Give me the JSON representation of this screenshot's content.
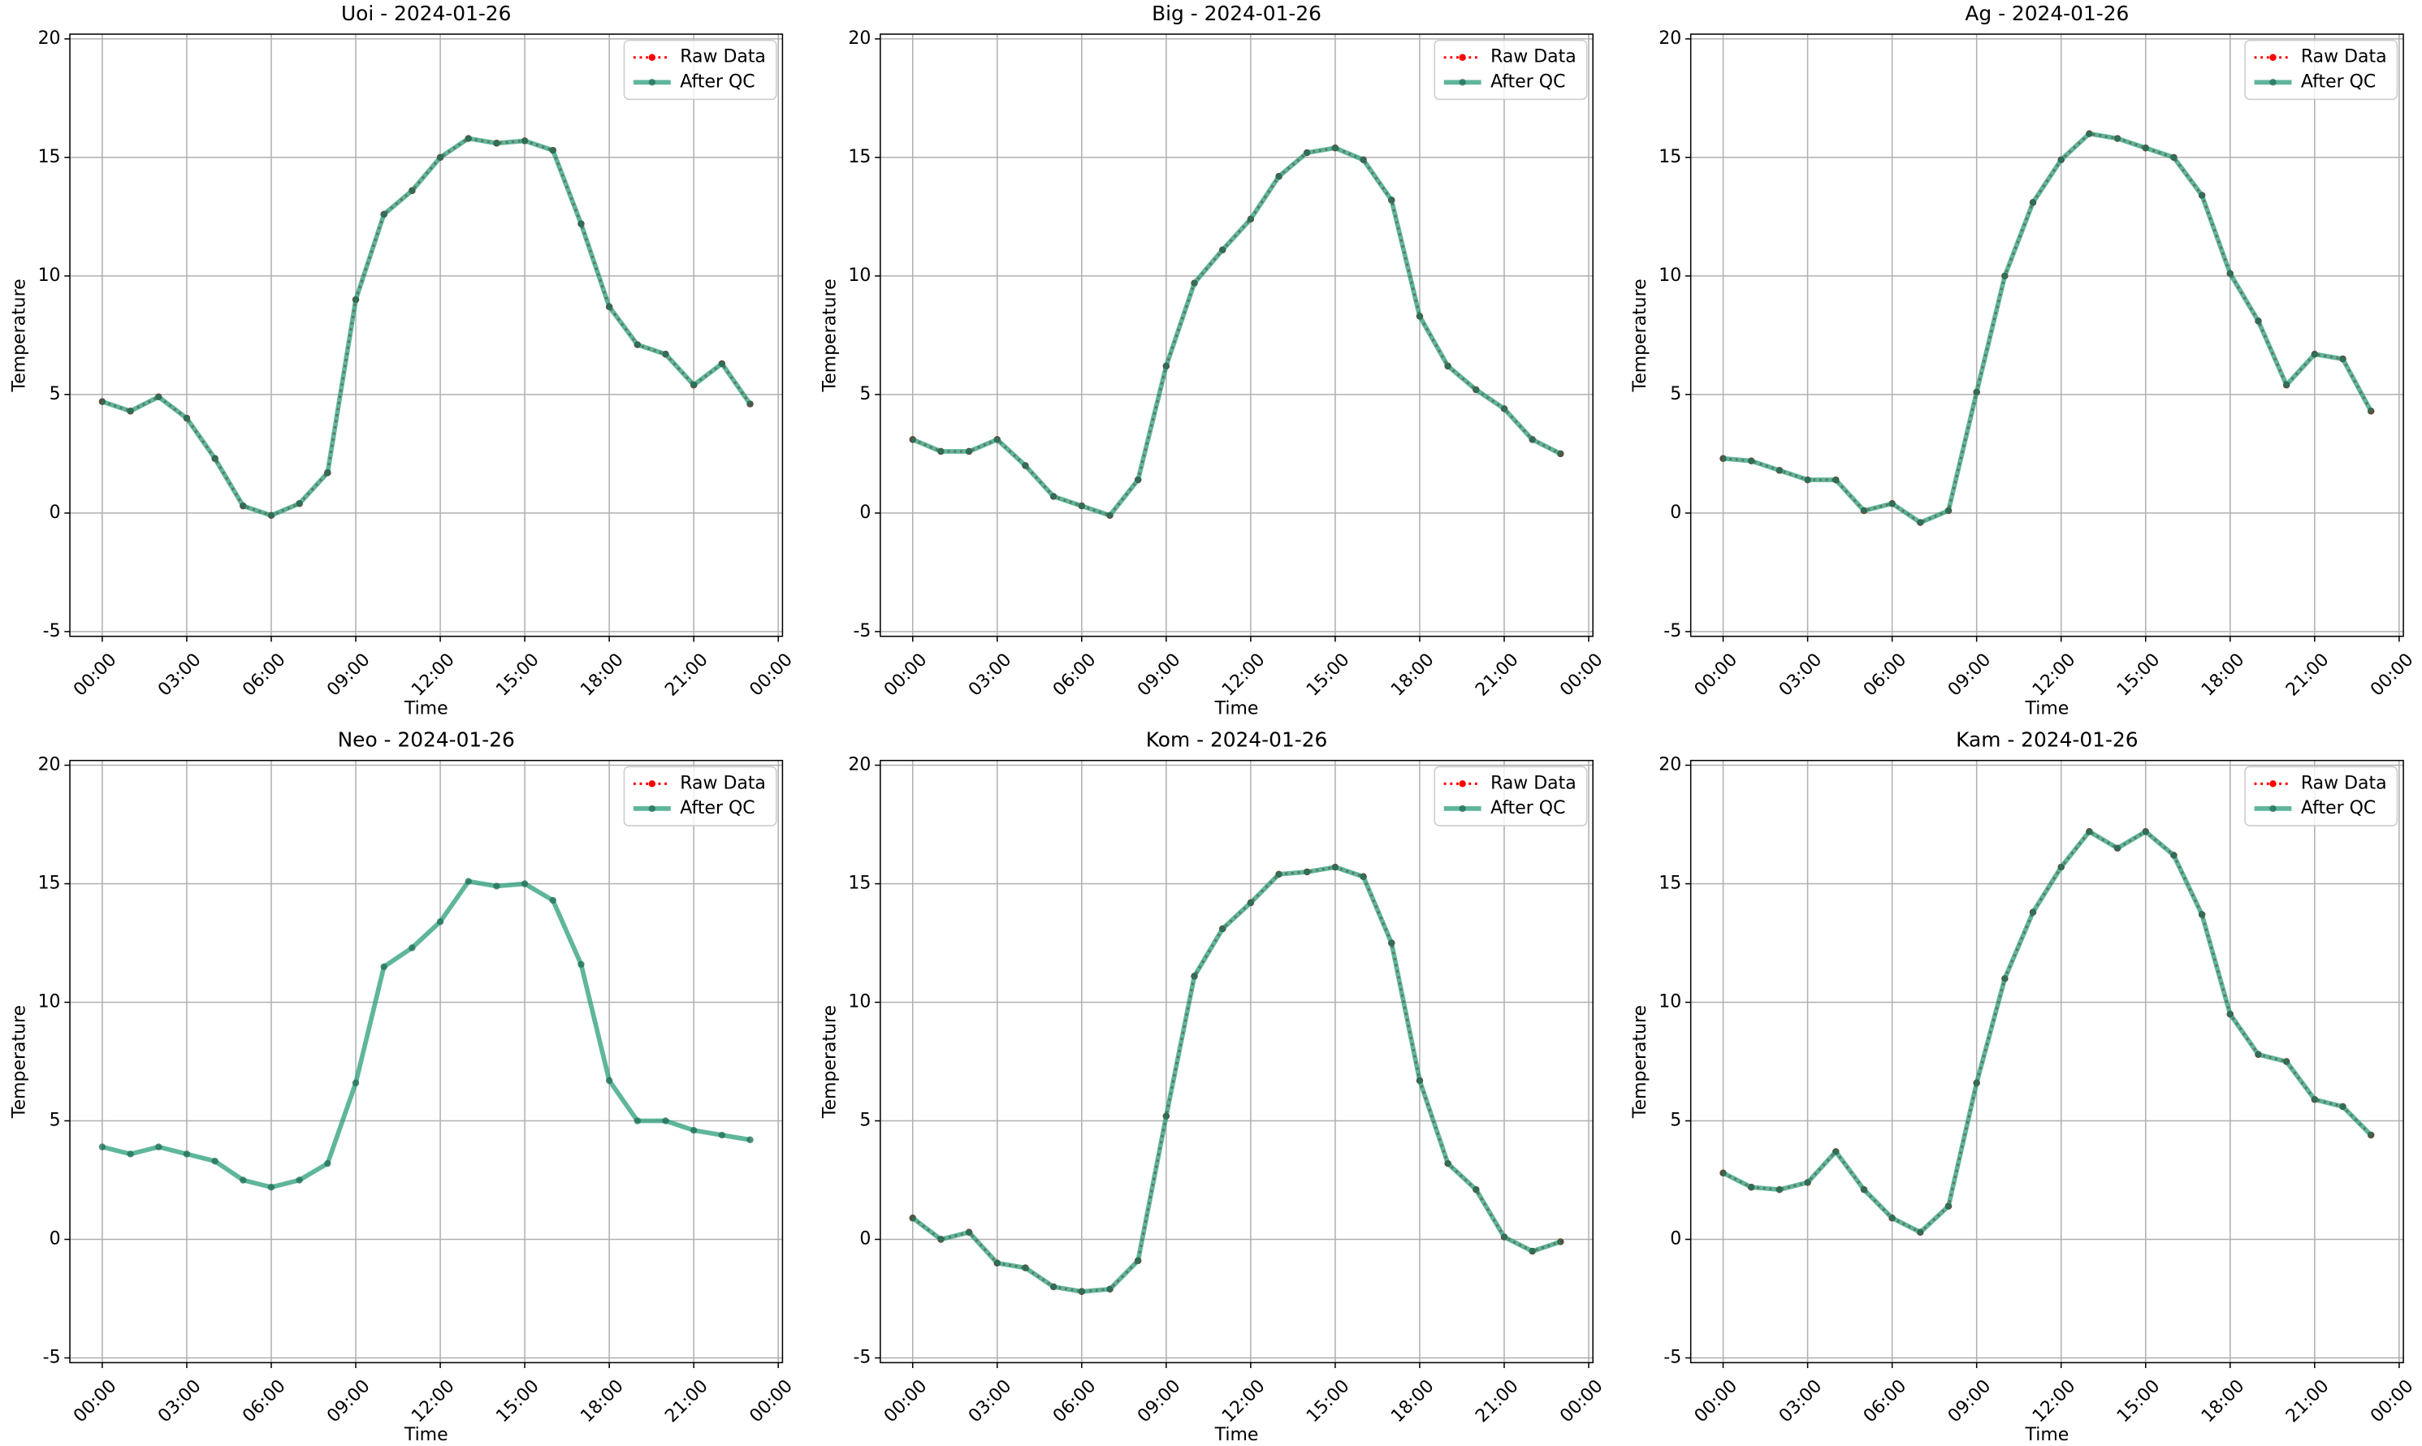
{
  "chart_data": [
    {
      "type": "line",
      "title": "Uoi - 2024-01-26",
      "xlabel": "Time",
      "ylabel": "Temperature",
      "x": [
        0,
        1,
        2,
        3,
        4,
        5,
        6,
        7,
        8,
        9,
        10,
        11,
        12,
        13,
        14,
        15,
        16,
        17,
        18,
        19,
        20,
        21,
        22,
        23
      ],
      "xlim": [
        -1.15,
        24.15
      ],
      "xticks": [
        {
          "value": 0,
          "label": "00:00"
        },
        {
          "value": 3,
          "label": "03:00"
        },
        {
          "value": 6,
          "label": "06:00"
        },
        {
          "value": 9,
          "label": "09:00"
        },
        {
          "value": 12,
          "label": "12:00"
        },
        {
          "value": 15,
          "label": "15:00"
        },
        {
          "value": 18,
          "label": "18:00"
        },
        {
          "value": 21,
          "label": "21:00"
        },
        {
          "value": 24,
          "label": "00:00"
        }
      ],
      "ylim": [
        -5.2,
        20.2
      ],
      "yticks": [
        -5,
        0,
        5,
        10,
        15,
        20
      ],
      "grid": true,
      "legend": "upper right",
      "series": [
        {
          "name": "Raw Data",
          "color": "red",
          "values": [
            4.7,
            4.3,
            4.9,
            4.0,
            2.3,
            0.3,
            -0.1,
            0.4,
            1.7,
            9.0,
            12.6,
            13.6,
            15.0,
            15.8,
            15.6,
            15.7,
            15.3,
            12.2,
            8.7,
            7.1,
            6.7,
            5.4,
            6.3,
            4.6
          ]
        },
        {
          "name": "After QC",
          "color": "#2a9d7a",
          "values": [
            4.7,
            4.3,
            4.9,
            4.0,
            2.3,
            0.3,
            -0.1,
            0.4,
            1.7,
            9.0,
            12.6,
            13.6,
            15.0,
            15.8,
            15.6,
            15.7,
            15.3,
            12.2,
            8.7,
            7.1,
            6.7,
            5.4,
            6.3,
            4.6
          ]
        }
      ]
    },
    {
      "type": "line",
      "title": "Big - 2024-01-26",
      "xlabel": "Time",
      "ylabel": "Temperature",
      "x": [
        0,
        1,
        2,
        3,
        4,
        5,
        6,
        7,
        8,
        9,
        10,
        11,
        12,
        13,
        14,
        15,
        16,
        17,
        18,
        19,
        20,
        21,
        22,
        23
      ],
      "xlim": [
        -1.15,
        24.15
      ],
      "xticks": [
        {
          "value": 0,
          "label": "00:00"
        },
        {
          "value": 3,
          "label": "03:00"
        },
        {
          "value": 6,
          "label": "06:00"
        },
        {
          "value": 9,
          "label": "09:00"
        },
        {
          "value": 12,
          "label": "12:00"
        },
        {
          "value": 15,
          "label": "15:00"
        },
        {
          "value": 18,
          "label": "18:00"
        },
        {
          "value": 21,
          "label": "21:00"
        },
        {
          "value": 24,
          "label": "00:00"
        }
      ],
      "ylim": [
        -5.2,
        20.2
      ],
      "yticks": [
        -5,
        0,
        5,
        10,
        15,
        20
      ],
      "grid": true,
      "legend": "upper right",
      "series": [
        {
          "name": "Raw Data",
          "color": "red",
          "values": [
            3.1,
            2.6,
            2.6,
            3.1,
            2.0,
            0.7,
            0.3,
            -0.1,
            1.4,
            6.2,
            9.7,
            11.1,
            12.4,
            14.2,
            15.2,
            15.4,
            14.9,
            13.2,
            8.3,
            6.2,
            5.2,
            4.4,
            3.1,
            2.5
          ]
        },
        {
          "name": "After QC",
          "color": "#2a9d7a",
          "values": [
            3.1,
            2.6,
            2.6,
            3.1,
            2.0,
            0.7,
            0.3,
            -0.1,
            1.4,
            6.2,
            9.7,
            11.1,
            12.4,
            14.2,
            15.2,
            15.4,
            14.9,
            13.2,
            8.3,
            6.2,
            5.2,
            4.4,
            3.1,
            2.5
          ]
        }
      ]
    },
    {
      "type": "line",
      "title": "Ag - 2024-01-26",
      "xlabel": "Time",
      "ylabel": "Temperature",
      "x": [
        0,
        1,
        2,
        3,
        4,
        5,
        6,
        7,
        8,
        9,
        10,
        11,
        12,
        13,
        14,
        15,
        16,
        17,
        18,
        19,
        20,
        21,
        22,
        23
      ],
      "xlim": [
        -1.15,
        24.15
      ],
      "xticks": [
        {
          "value": 0,
          "label": "00:00"
        },
        {
          "value": 3,
          "label": "03:00"
        },
        {
          "value": 6,
          "label": "06:00"
        },
        {
          "value": 9,
          "label": "09:00"
        },
        {
          "value": 12,
          "label": "12:00"
        },
        {
          "value": 15,
          "label": "15:00"
        },
        {
          "value": 18,
          "label": "18:00"
        },
        {
          "value": 21,
          "label": "21:00"
        },
        {
          "value": 24,
          "label": "00:00"
        }
      ],
      "ylim": [
        -5.2,
        20.2
      ],
      "yticks": [
        -5,
        0,
        5,
        10,
        15,
        20
      ],
      "grid": true,
      "legend": "upper right",
      "series": [
        {
          "name": "Raw Data",
          "color": "red",
          "values": [
            2.3,
            2.2,
            1.8,
            1.4,
            1.4,
            0.1,
            0.4,
            -0.4,
            0.1,
            5.1,
            10.0,
            13.1,
            14.9,
            16.0,
            15.8,
            15.4,
            15.0,
            13.4,
            10.1,
            8.1,
            5.4,
            6.7,
            6.5,
            4.3
          ]
        },
        {
          "name": "After QC",
          "color": "#2a9d7a",
          "values": [
            2.3,
            2.2,
            1.8,
            1.4,
            1.4,
            0.1,
            0.4,
            -0.4,
            0.1,
            5.1,
            10.0,
            13.1,
            14.9,
            16.0,
            15.8,
            15.4,
            15.0,
            13.4,
            10.1,
            8.1,
            5.4,
            6.7,
            6.5,
            4.3
          ]
        }
      ]
    },
    {
      "type": "line",
      "title": "Neo - 2024-01-26",
      "xlabel": "Time",
      "ylabel": "Temperature",
      "x": [
        0,
        1,
        2,
        3,
        4,
        5,
        6,
        7,
        8,
        9,
        10,
        11,
        12,
        13,
        14,
        15,
        16,
        17,
        18,
        19,
        20,
        21,
        22,
        23
      ],
      "xlim": [
        -1.15,
        24.15
      ],
      "xticks": [
        {
          "value": 0,
          "label": "00:00"
        },
        {
          "value": 3,
          "label": "03:00"
        },
        {
          "value": 6,
          "label": "06:00"
        },
        {
          "value": 9,
          "label": "09:00"
        },
        {
          "value": 12,
          "label": "12:00"
        },
        {
          "value": 15,
          "label": "15:00"
        },
        {
          "value": 18,
          "label": "18:00"
        },
        {
          "value": 21,
          "label": "21:00"
        },
        {
          "value": 24,
          "label": "00:00"
        }
      ],
      "ylim": [
        -5.2,
        20.2
      ],
      "yticks": [
        -5,
        0,
        5,
        10,
        15,
        20
      ],
      "grid": true,
      "legend": "upper right",
      "series": [
        {
          "name": "Raw Data",
          "color": "red",
          "values": [
            null,
            null,
            null,
            null,
            null,
            null,
            null,
            null,
            null,
            null,
            null,
            null,
            null,
            null,
            null,
            null,
            null,
            null,
            null,
            null,
            null,
            null,
            null,
            null
          ]
        },
        {
          "name": "After QC",
          "color": "#2a9d7a",
          "values": [
            3.9,
            3.6,
            3.9,
            3.6,
            3.3,
            2.5,
            2.2,
            2.5,
            3.2,
            6.6,
            11.5,
            12.3,
            13.4,
            15.1,
            14.9,
            15.0,
            14.3,
            11.6,
            6.7,
            5.0,
            5.0,
            4.6,
            4.4,
            4.2
          ]
        }
      ]
    },
    {
      "type": "line",
      "title": "Kom - 2024-01-26",
      "xlabel": "Time",
      "ylabel": "Temperature",
      "x": [
        0,
        1,
        2,
        3,
        4,
        5,
        6,
        7,
        8,
        9,
        10,
        11,
        12,
        13,
        14,
        15,
        16,
        17,
        18,
        19,
        20,
        21,
        22,
        23
      ],
      "xlim": [
        -1.15,
        24.15
      ],
      "xticks": [
        {
          "value": 0,
          "label": "00:00"
        },
        {
          "value": 3,
          "label": "03:00"
        },
        {
          "value": 6,
          "label": "06:00"
        },
        {
          "value": 9,
          "label": "09:00"
        },
        {
          "value": 12,
          "label": "12:00"
        },
        {
          "value": 15,
          "label": "15:00"
        },
        {
          "value": 18,
          "label": "18:00"
        },
        {
          "value": 21,
          "label": "21:00"
        },
        {
          "value": 24,
          "label": "00:00"
        }
      ],
      "ylim": [
        -5.2,
        20.2
      ],
      "yticks": [
        -5,
        0,
        5,
        10,
        15,
        20
      ],
      "grid": true,
      "legend": "upper right",
      "series": [
        {
          "name": "Raw Data",
          "color": "red",
          "values": [
            0.9,
            0.0,
            0.3,
            -1.0,
            -1.2,
            -2.0,
            -2.2,
            -2.1,
            -0.9,
            5.2,
            11.1,
            13.1,
            14.2,
            15.4,
            15.5,
            15.7,
            15.3,
            12.5,
            6.7,
            3.2,
            2.1,
            0.1,
            -0.5,
            -0.1
          ]
        },
        {
          "name": "After QC",
          "color": "#2a9d7a",
          "values": [
            0.9,
            0.0,
            0.3,
            -1.0,
            -1.2,
            -2.0,
            -2.2,
            -2.1,
            -0.9,
            5.2,
            11.1,
            13.1,
            14.2,
            15.4,
            15.5,
            15.7,
            15.3,
            12.5,
            6.7,
            3.2,
            2.1,
            0.1,
            -0.5,
            -0.1
          ]
        }
      ]
    },
    {
      "type": "line",
      "title": "Kam - 2024-01-26",
      "xlabel": "Time",
      "ylabel": "Temperature",
      "x": [
        0,
        1,
        2,
        3,
        4,
        5,
        6,
        7,
        8,
        9,
        10,
        11,
        12,
        13,
        14,
        15,
        16,
        17,
        18,
        19,
        20,
        21,
        22,
        23
      ],
      "xlim": [
        -1.15,
        24.15
      ],
      "xticks": [
        {
          "value": 0,
          "label": "00:00"
        },
        {
          "value": 3,
          "label": "03:00"
        },
        {
          "value": 6,
          "label": "06:00"
        },
        {
          "value": 9,
          "label": "09:00"
        },
        {
          "value": 12,
          "label": "12:00"
        },
        {
          "value": 15,
          "label": "15:00"
        },
        {
          "value": 18,
          "label": "18:00"
        },
        {
          "value": 21,
          "label": "21:00"
        },
        {
          "value": 24,
          "label": "00:00"
        }
      ],
      "ylim": [
        -5.2,
        20.2
      ],
      "yticks": [
        -5,
        0,
        5,
        10,
        15,
        20
      ],
      "grid": true,
      "legend": "upper right",
      "series": [
        {
          "name": "Raw Data",
          "color": "red",
          "values": [
            2.8,
            2.2,
            2.1,
            2.4,
            3.7,
            2.1,
            0.9,
            0.3,
            1.4,
            6.6,
            11.0,
            13.8,
            15.7,
            17.2,
            16.5,
            17.2,
            16.2,
            13.7,
            9.5,
            7.8,
            7.5,
            5.9,
            5.6,
            4.4
          ]
        },
        {
          "name": "After QC",
          "color": "#2a9d7a",
          "values": [
            2.8,
            2.2,
            2.1,
            2.4,
            3.7,
            2.1,
            0.9,
            0.3,
            1.4,
            6.6,
            11.0,
            13.8,
            15.7,
            17.2,
            16.5,
            17.2,
            16.2,
            13.7,
            9.5,
            7.8,
            7.5,
            5.9,
            5.6,
            4.4
          ]
        }
      ]
    }
  ]
}
